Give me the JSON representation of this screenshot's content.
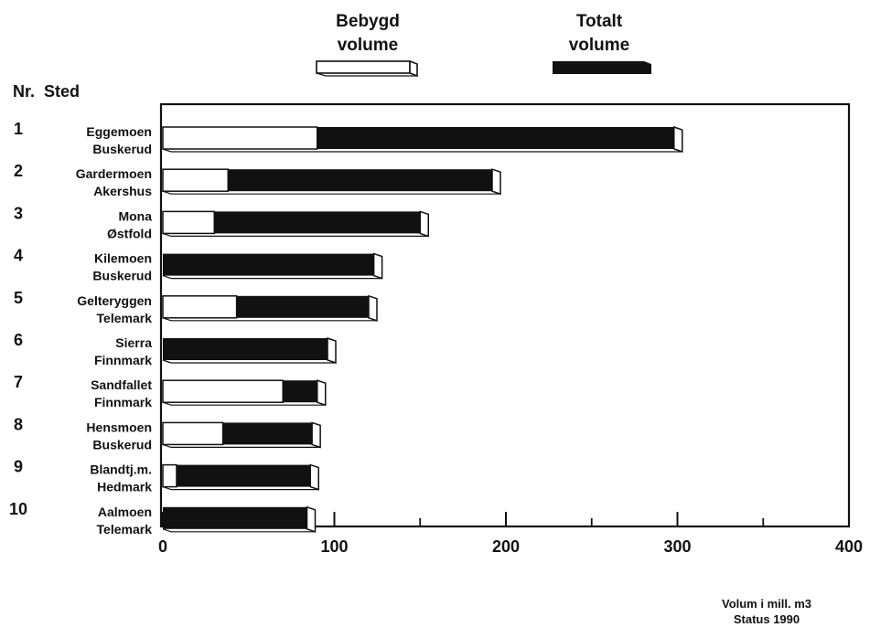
{
  "header": {
    "nr_label": "Nr.",
    "sted_label": "Sted"
  },
  "legend": {
    "bebygd_line1": "Bebygd",
    "bebygd_line2": "volume",
    "totalt_line1": "Totalt",
    "totalt_line2": "volume"
  },
  "footer": {
    "line1": "Volum i mill. m3",
    "line2": "Status 1990"
  },
  "colors": {
    "bebygd": "#ffffff",
    "totalt": "#111111",
    "axis": "#111111"
  },
  "chart_data": {
    "type": "bar",
    "orientation": "horizontal",
    "stacked": true,
    "xlim": [
      0,
      400
    ],
    "xticks": [
      "0",
      "100",
      "200",
      "300",
      "400"
    ],
    "rows": [
      {
        "nr": "1",
        "place": "Eggemoen",
        "region": "Buskerud"
      },
      {
        "nr": "2",
        "place": "Gardermoen",
        "region": "Akershus"
      },
      {
        "nr": "3",
        "place": "Mona",
        "region": "Østfold"
      },
      {
        "nr": "4",
        "place": "Kilemoen",
        "region": "Buskerud"
      },
      {
        "nr": "5",
        "place": "Gelteryggen",
        "region": "Telemark"
      },
      {
        "nr": "6",
        "place": "Sierra",
        "region": "Finnmark"
      },
      {
        "nr": "7",
        "place": "Sandfallet",
        "region": "Finnmark"
      },
      {
        "nr": "8",
        "place": "Hensmoen",
        "region": "Buskerud"
      },
      {
        "nr": "9",
        "place": "Blandtj.m.",
        "region": "Hedmark"
      },
      {
        "nr": "10",
        "place": "Aalmoen",
        "region": "Telemark"
      }
    ],
    "series": [
      {
        "name": "Bebygd volume",
        "values": [
          90,
          38,
          30,
          0,
          43,
          0,
          70,
          35,
          8,
          0
        ]
      },
      {
        "name": "Totalt volume",
        "values": [
          298,
          192,
          150,
          123,
          120,
          96,
          90,
          87,
          86,
          84
        ]
      }
    ]
  }
}
